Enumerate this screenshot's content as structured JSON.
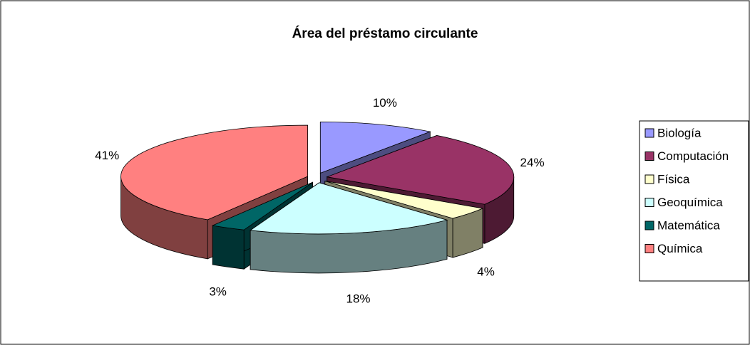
{
  "chart_data": {
    "type": "pie3d",
    "title": "Área del préstamo circulante",
    "categories": [
      "Biología",
      "Computación",
      "Física",
      "Geoquímica",
      "Matemática",
      "Química"
    ],
    "values": [
      10,
      24,
      4,
      18,
      3,
      41
    ],
    "value_labels": [
      "10%",
      "24%",
      "4%",
      "18%",
      "3%",
      "41%"
    ],
    "colors": [
      "#9999ff",
      "#993366",
      "#ffffcc",
      "#ccffff",
      "#006666",
      "#ff8080"
    ],
    "legend": "right"
  }
}
